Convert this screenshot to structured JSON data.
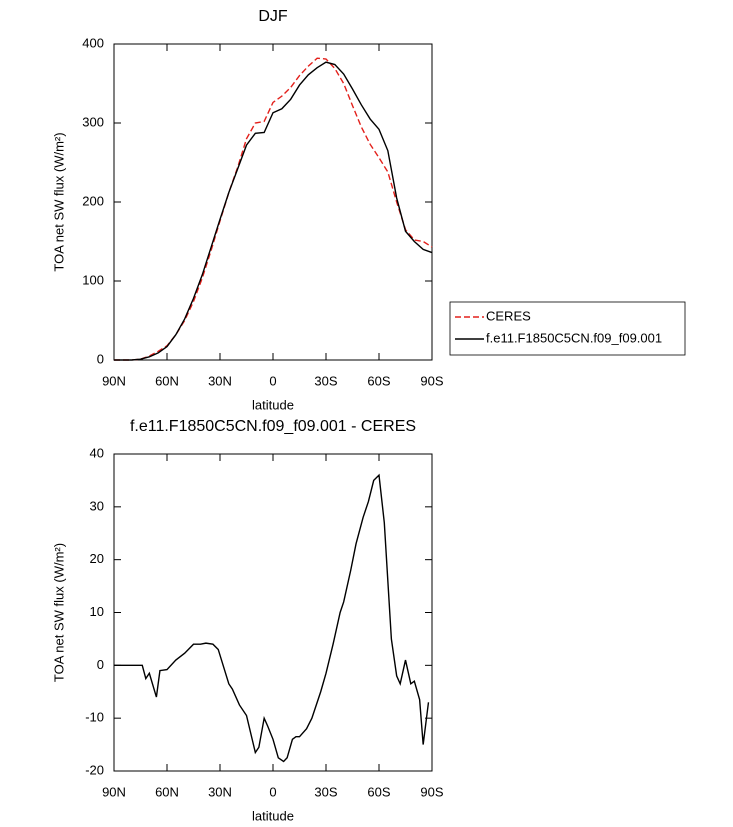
{
  "chart_data": [
    {
      "type": "line",
      "title": "DJF",
      "x_label": "latitude",
      "y_label": "TOA net SW flux (W/m²)",
      "x": [
        90,
        85,
        80,
        75,
        70,
        65,
        60,
        55,
        50,
        45,
        40,
        35,
        30,
        25,
        20,
        15,
        10,
        5,
        0,
        -5,
        -10,
        -15,
        -20,
        -25,
        -30,
        -35,
        -40,
        -45,
        -50,
        -55,
        -60,
        -65,
        -70,
        -75,
        -80,
        -85,
        -90
      ],
      "series": [
        {
          "name": "CERES",
          "color": "#e3201b",
          "line_style": "dashed",
          "values": [
            0,
            0,
            0,
            1,
            5,
            11,
            18,
            32,
            50,
            74,
            104,
            139,
            176,
            212,
            244,
            280,
            300,
            302,
            326,
            334,
            345,
            360,
            372,
            382,
            381,
            369,
            350,
            322,
            295,
            273,
            256,
            238,
            200,
            165,
            152,
            150,
            143
          ]
        },
        {
          "name": "f.e11.F1850C5CN.f09_f09.001",
          "color": "#000000",
          "line_style": "solid",
          "values": [
            0,
            0,
            0,
            1,
            4,
            9,
            17,
            32,
            52,
            78,
            108,
            143,
            178,
            212,
            242,
            272,
            287,
            288,
            313,
            318,
            330,
            348,
            361,
            370,
            377,
            374,
            362,
            343,
            323,
            305,
            292,
            265,
            205,
            163,
            150,
            140,
            136
          ]
        }
      ],
      "xlim": [
        90,
        -90
      ],
      "xticks": [
        {
          "value": 90,
          "label": "90N"
        },
        {
          "value": 60,
          "label": "60N"
        },
        {
          "value": 30,
          "label": "30N"
        },
        0,
        {
          "value": -30,
          "label": "30S"
        },
        {
          "value": -60,
          "label": "60S"
        },
        {
          "value": -90,
          "label": "90S"
        }
      ],
      "ylim": [
        0,
        400
      ],
      "yticks": [
        0,
        100,
        200,
        300,
        400
      ],
      "legend": "right"
    },
    {
      "type": "line",
      "title": "f.e11.F1850C5CN.f09_f09.001 - CERES",
      "x_label": "latitude",
      "y_label": "TOA net SW flux (W/m²)",
      "x": [
        90,
        74,
        72,
        70,
        66,
        64,
        60,
        55,
        50,
        45,
        41,
        38,
        34,
        31,
        25,
        23,
        19,
        15,
        10,
        8,
        5,
        3,
        0,
        -3,
        -6,
        -8,
        -11,
        -13,
        -15,
        -19,
        -22,
        -27,
        -30,
        -34,
        -38,
        -40,
        -44,
        -47,
        -51,
        -54,
        -57,
        -60,
        -63,
        -67,
        -70,
        -72,
        -75,
        -78,
        -80,
        -83,
        -85,
        -88
      ],
      "series": [
        {
          "name": "f.e11.F1850C5CN.f09_f09.001 - CERES",
          "color": "#000000",
          "line_style": "solid",
          "values": [
            0,
            0,
            -2.5,
            -1.5,
            -6,
            -1,
            -0.8,
            1,
            2.3,
            4,
            4,
            4.2,
            4,
            3,
            -3.5,
            -4.5,
            -7.5,
            -9.5,
            -16.5,
            -15.5,
            -10,
            -11.5,
            -14,
            -17.5,
            -18.2,
            -17.5,
            -14,
            -13.5,
            -13.5,
            -12,
            -10,
            -5,
            -1.5,
            4,
            10,
            12,
            18,
            23,
            28,
            31,
            35,
            36,
            27,
            5,
            -2,
            -3.5,
            1,
            -3.5,
            -3,
            -6.5,
            -15,
            -7
          ]
        }
      ],
      "xlim": [
        90,
        -90
      ],
      "xticks": [
        {
          "value": 90,
          "label": "90N"
        },
        {
          "value": 60,
          "label": "60N"
        },
        {
          "value": 30,
          "label": "30N"
        },
        0,
        {
          "value": -30,
          "label": "30S"
        },
        {
          "value": -60,
          "label": "60S"
        },
        {
          "value": -90,
          "label": "90S"
        }
      ],
      "ylim": [
        -20,
        40
      ],
      "yticks": [
        -20,
        -10,
        0,
        10,
        20,
        30,
        40
      ]
    }
  ]
}
